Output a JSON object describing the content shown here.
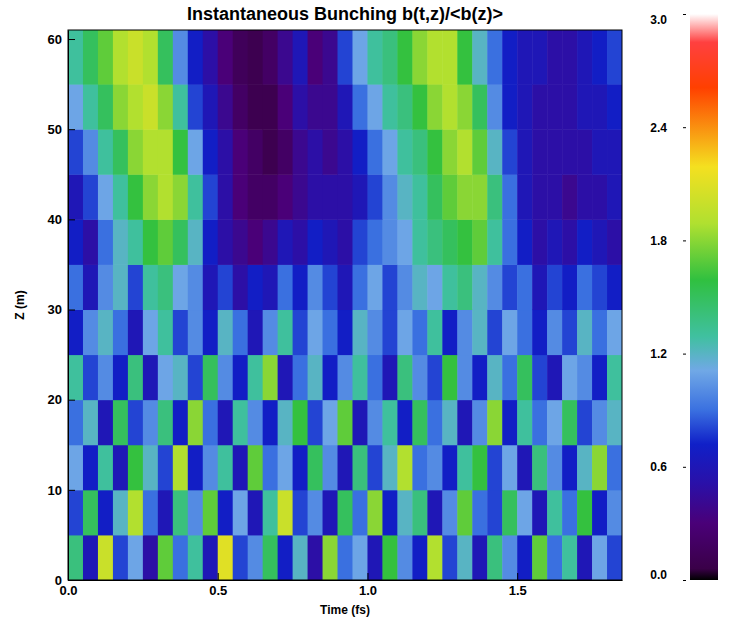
{
  "chart_data": {
    "type": "heatmap",
    "title": "Instantaneous Bunching b(t,z)/<b(z)>",
    "x_label": "Time (fs)",
    "y_label": "Z (m)",
    "xlim": [
      0,
      1.85
    ],
    "ylim": [
      0,
      61
    ],
    "xticks": [
      {
        "value": 0,
        "label": "0.0"
      },
      0.5,
      {
        "value": 1,
        "label": "1.0"
      },
      1.5
    ],
    "yticks": [
      0,
      10,
      20,
      30,
      40,
      50,
      60
    ],
    "x_edges": [
      0,
      0.05,
      0.1,
      0.15,
      0.2,
      0.25,
      0.3,
      0.35,
      0.4,
      0.45,
      0.5,
      0.55,
      0.6,
      0.65,
      0.7,
      0.75,
      0.8,
      0.85,
      0.9,
      0.95,
      1,
      1.05,
      1.1,
      1.15,
      1.2,
      1.25,
      1.3,
      1.35,
      1.4,
      1.45,
      1.5,
      1.55,
      1.6,
      1.65,
      1.7,
      1.75,
      1.8,
      1.85
    ],
    "y_edges": [
      0,
      5,
      10,
      15,
      20,
      25,
      30,
      35,
      40,
      45,
      50,
      55,
      61
    ],
    "cells": [
      [
        1.4,
        0.6,
        2.0,
        0.8,
        1.1,
        0.5,
        1.7,
        0.9,
        1.3,
        0.6,
        2.1,
        0.8,
        1.0,
        1.5,
        0.7,
        1.2,
        0.5,
        1.8,
        0.9,
        1.1,
        0.6,
        1.6,
        1.0,
        0.7,
        1.9,
        0.8,
        1.2,
        0.6,
        1.4,
        1.0,
        0.7,
        1.7,
        0.9,
        1.3,
        0.6,
        1.1,
        0.8
      ],
      [
        0.8,
        1.5,
        0.7,
        1.2,
        1.9,
        0.9,
        0.6,
        1.4,
        1.0,
        1.7,
        0.7,
        1.1,
        0.6,
        1.3,
        2.0,
        0.8,
        1.0,
        0.6,
        1.5,
        0.9,
        1.8,
        0.7,
        1.2,
        1.4,
        0.6,
        1.0,
        1.7,
        0.9,
        0.8,
        1.5,
        1.1,
        0.6,
        1.3,
        0.9,
        1.6,
        0.7,
        1.0
      ],
      [
        1.1,
        0.7,
        1.3,
        0.6,
        1.6,
        1.2,
        0.8,
        1.9,
        0.7,
        1.0,
        1.3,
        0.6,
        1.7,
        0.9,
        1.1,
        0.7,
        1.5,
        1.0,
        0.6,
        1.4,
        0.8,
        1.2,
        1.9,
        0.9,
        1.0,
        0.7,
        1.3,
        1.6,
        0.8,
        1.1,
        0.6,
        1.4,
        1.0,
        0.7,
        1.2,
        1.8,
        0.9
      ],
      [
        0.9,
        1.2,
        0.6,
        1.5,
        0.8,
        1.0,
        1.4,
        0.7,
        1.8,
        0.9,
        0.6,
        1.3,
        1.0,
        0.7,
        1.2,
        1.6,
        0.8,
        1.1,
        1.7,
        0.6,
        1.0,
        1.3,
        0.7,
        1.5,
        0.9,
        1.2,
        0.6,
        1.0,
        1.8,
        0.7,
        1.3,
        0.9,
        1.1,
        1.5,
        0.8,
        1.0,
        1.2
      ],
      [
        1.3,
        0.8,
        1.0,
        0.7,
        1.4,
        0.6,
        1.1,
        1.2,
        0.8,
        1.5,
        1.0,
        0.7,
        1.3,
        1.8,
        0.6,
        0.9,
        1.2,
        0.7,
        1.0,
        1.3,
        0.9,
        0.6,
        1.4,
        1.0,
        0.8,
        1.6,
        1.0,
        0.7,
        1.2,
        0.9,
        1.5,
        0.8,
        0.6,
        1.1,
        1.0,
        0.7,
        1.3
      ],
      [
        0.7,
        1.0,
        1.2,
        0.9,
        0.6,
        1.1,
        1.3,
        0.8,
        1.0,
        0.7,
        1.2,
        0.9,
        0.6,
        1.0,
        1.3,
        0.8,
        1.1,
        0.9,
        0.7,
        1.2,
        1.0,
        0.8,
        1.1,
        0.9,
        1.3,
        0.7,
        1.0,
        1.2,
        0.8,
        1.1,
        0.9,
        0.7,
        1.0,
        0.8,
        1.2,
        0.9,
        1.1
      ],
      [
        0.9,
        0.6,
        1.0,
        1.2,
        0.8,
        1.3,
        1.4,
        1.1,
        1.0,
        0.6,
        0.8,
        0.5,
        0.7,
        0.6,
        0.9,
        0.7,
        1.0,
        0.8,
        0.6,
        0.9,
        1.1,
        0.8,
        1.0,
        1.2,
        1.1,
        1.3,
        1.4,
        1.2,
        1.0,
        0.8,
        0.9,
        0.6,
        0.8,
        0.7,
        0.9,
        0.8,
        0.7
      ],
      [
        0.7,
        0.5,
        0.9,
        1.2,
        1.3,
        1.6,
        1.7,
        1.5,
        1.2,
        0.7,
        0.5,
        0.4,
        0.3,
        0.4,
        0.6,
        0.5,
        0.7,
        0.6,
        0.5,
        0.8,
        0.9,
        1.0,
        1.1,
        1.3,
        1.4,
        1.5,
        1.6,
        1.7,
        1.3,
        0.9,
        0.7,
        0.5,
        0.6,
        0.5,
        0.7,
        0.6,
        0.5
      ],
      [
        0.6,
        0.8,
        1.1,
        1.3,
        1.6,
        1.8,
        1.9,
        1.8,
        1.3,
        0.8,
        0.5,
        0.3,
        0.2,
        0.2,
        0.3,
        0.4,
        0.5,
        0.5,
        0.5,
        0.6,
        0.8,
        1.0,
        1.2,
        1.3,
        1.5,
        1.7,
        1.8,
        1.8,
        1.4,
        0.9,
        0.6,
        0.5,
        0.5,
        0.4,
        0.5,
        0.5,
        0.6
      ],
      [
        0.8,
        1.0,
        1.3,
        1.5,
        1.8,
        1.9,
        1.9,
        1.6,
        1.1,
        0.7,
        0.5,
        0.3,
        0.2,
        0.1,
        0.2,
        0.4,
        0.5,
        0.4,
        0.5,
        0.7,
        0.9,
        1.1,
        1.3,
        1.4,
        1.6,
        1.8,
        1.9,
        1.7,
        1.2,
        0.8,
        0.6,
        0.5,
        0.5,
        0.5,
        0.5,
        0.6,
        0.6
      ],
      [
        1.1,
        1.3,
        1.5,
        1.8,
        1.9,
        2.0,
        1.8,
        1.3,
        0.8,
        0.6,
        0.4,
        0.2,
        0.1,
        0.1,
        0.3,
        0.5,
        0.4,
        0.4,
        0.6,
        0.9,
        1.1,
        1.3,
        1.4,
        1.6,
        1.8,
        1.9,
        1.8,
        1.5,
        1.0,
        0.7,
        0.6,
        0.5,
        0.5,
        0.5,
        0.6,
        0.6,
        0.7
      ],
      [
        1.3,
        1.5,
        1.7,
        1.9,
        2.0,
        1.9,
        1.5,
        1.0,
        0.7,
        0.5,
        0.3,
        0.15,
        0.1,
        0.2,
        0.4,
        0.6,
        0.3,
        0.4,
        0.8,
        1.1,
        1.3,
        1.4,
        1.6,
        1.8,
        1.9,
        1.9,
        1.6,
        1.2,
        0.9,
        0.7,
        0.6,
        0.6,
        0.5,
        0.5,
        0.6,
        0.7,
        0.8
      ]
    ],
    "colorbar_range": [
      0,
      3
    ],
    "colorbar_ticks": [
      {
        "value": 0,
        "label": "0.0"
      },
      0.6,
      1.2,
      1.8,
      2.4,
      {
        "value": 3,
        "label": "3.0"
      }
    ]
  }
}
